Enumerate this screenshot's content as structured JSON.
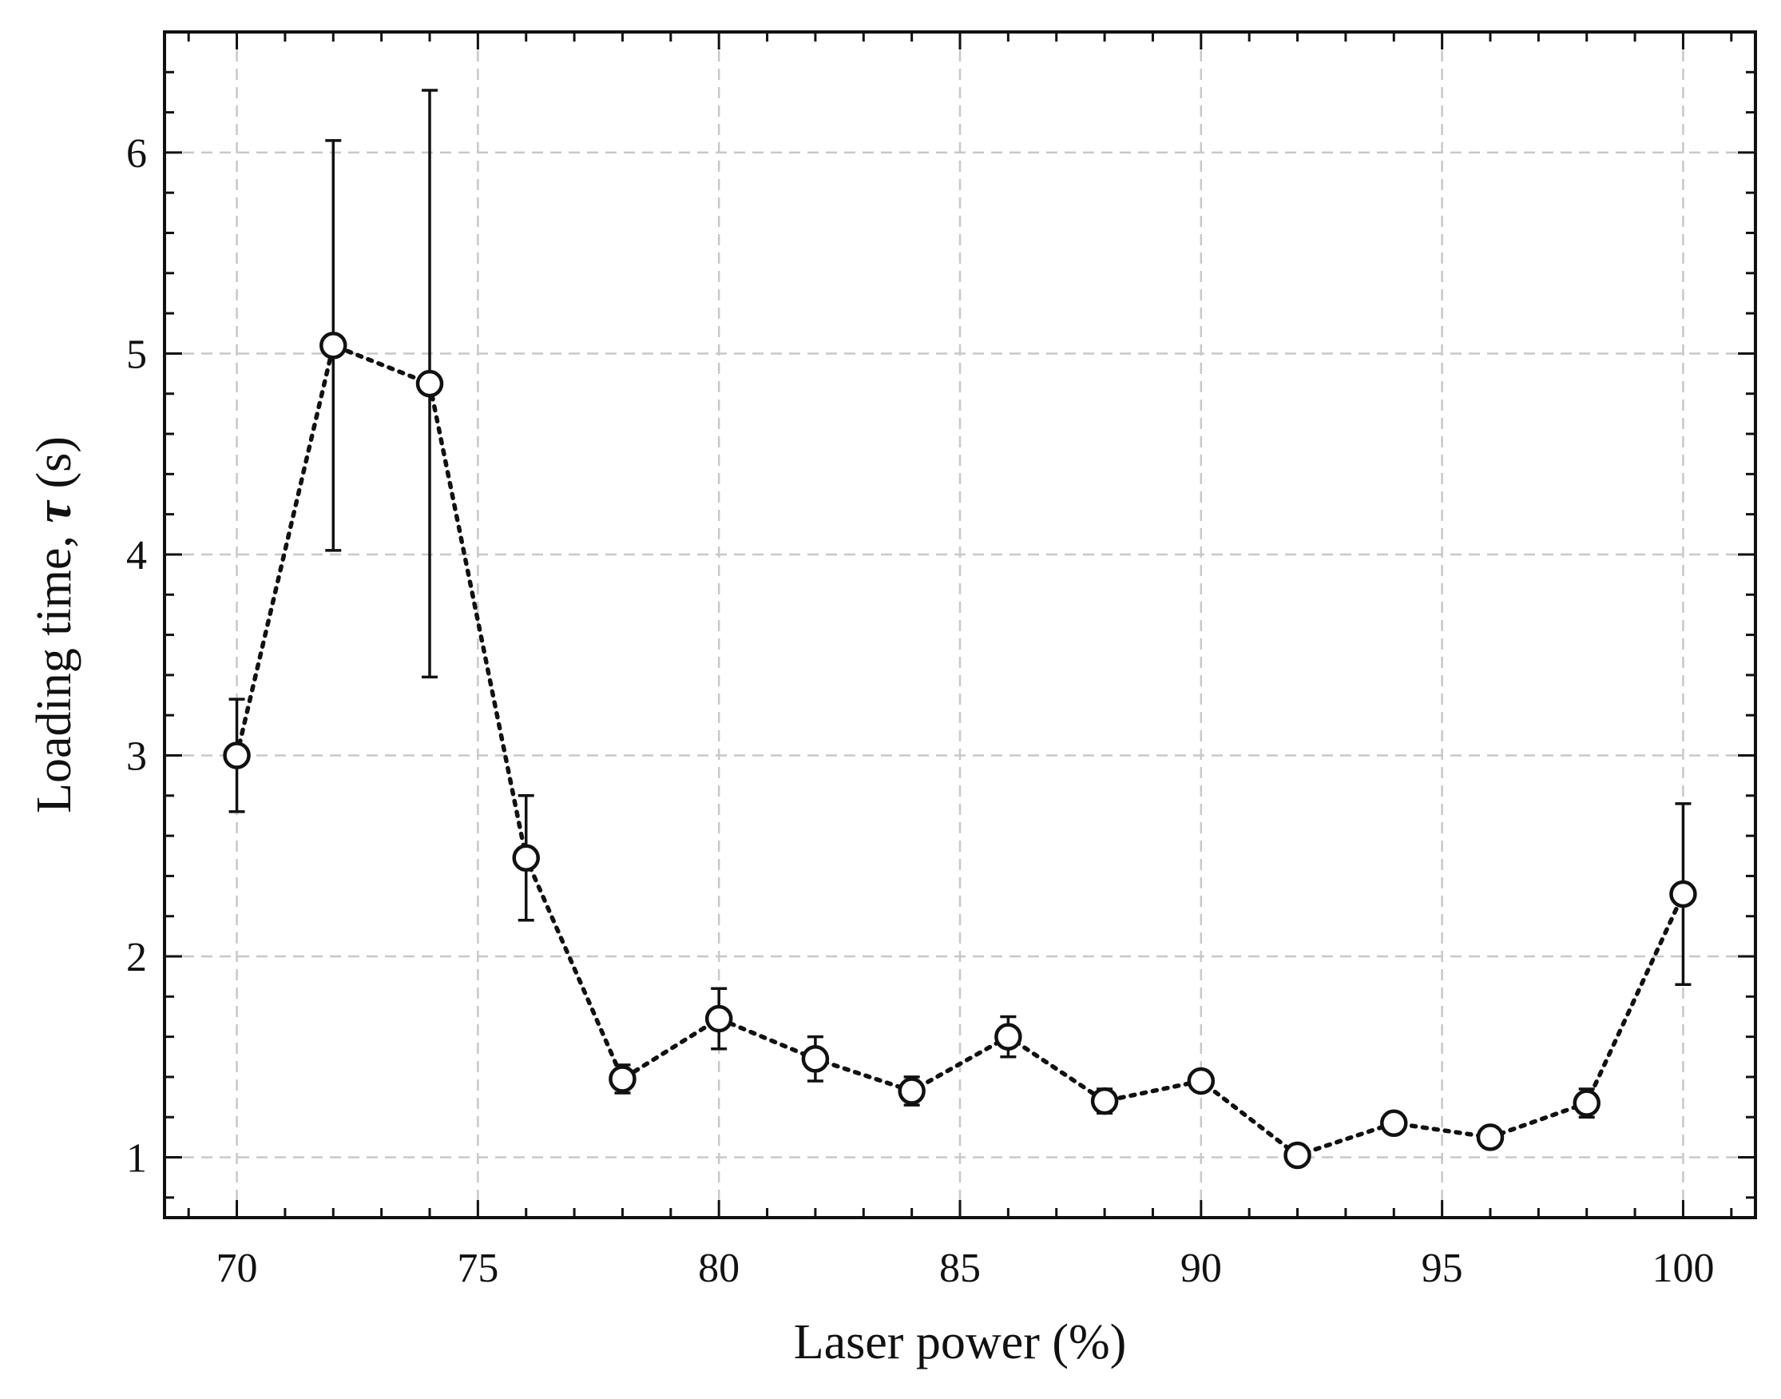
{
  "chart_data": {
    "type": "scatter",
    "title": "",
    "xlabel": "Laser power (%)",
    "ylabel_prefix": "Loading time, ",
    "ylabel_symbol": "τ",
    "ylabel_suffix": " (s)",
    "xlim": [
      68.5,
      101.5
    ],
    "ylim": [
      0.7,
      6.6
    ],
    "xticks": [
      70,
      75,
      80,
      85,
      90,
      95,
      100
    ],
    "yticks": [
      1,
      2,
      3,
      4,
      5,
      6
    ],
    "x_minor_step": 1,
    "y_minor_step": 0.2,
    "grid": true,
    "line_style": "dotted",
    "marker": "open-circle",
    "color": "#111111",
    "series": [
      {
        "x": [
          70,
          72,
          74,
          76,
          78,
          80,
          82,
          84,
          86,
          88,
          90,
          92,
          94,
          96,
          98,
          100
        ],
        "y": [
          3.0,
          5.04,
          4.85,
          2.49,
          1.39,
          1.69,
          1.49,
          1.33,
          1.6,
          1.28,
          1.38,
          1.01,
          1.17,
          1.1,
          1.27,
          2.31
        ],
        "err": [
          0.28,
          1.02,
          1.46,
          0.31,
          0.07,
          0.15,
          0.11,
          0.07,
          0.1,
          0.06,
          0.05,
          0.04,
          0.05,
          0.05,
          0.07,
          0.45
        ]
      }
    ]
  }
}
